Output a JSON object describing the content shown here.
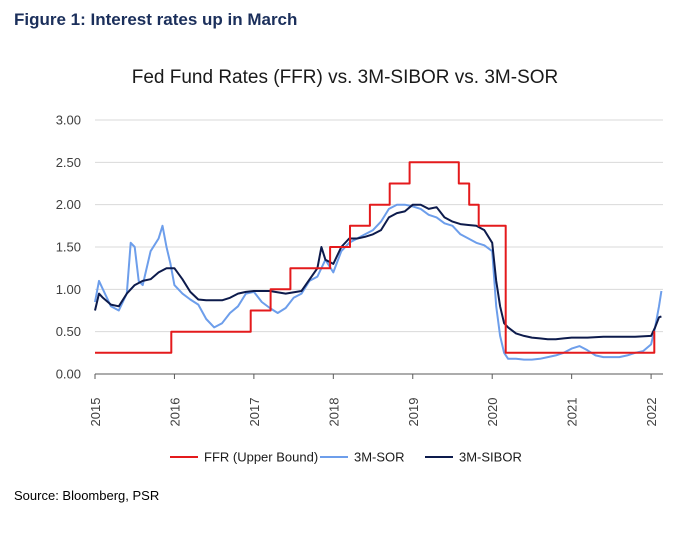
{
  "figure_caption": "Figure 1: Interest rates up in March",
  "source_note": "Source: Bloomberg, PSR",
  "chart_data": {
    "type": "line",
    "title": "Fed Fund Rates (FFR) vs. 3M-SIBOR vs. 3M-SOR",
    "xlabel": "",
    "ylabel": "",
    "xlim": [
      2015.0,
      2022.15
    ],
    "ylim": [
      0,
      3.0
    ],
    "yticks": [
      "0.00",
      "0.50",
      "1.00",
      "1.50",
      "2.00",
      "2.50",
      "3.00"
    ],
    "xticks": [
      "2015",
      "2016",
      "2017",
      "2018",
      "2019",
      "2020",
      "2021",
      "2022"
    ],
    "grid": "horizontal",
    "legend_position": "bottom",
    "series": [
      {
        "name": "FFR (Upper Bound)",
        "color": "#e41a1c",
        "step": true,
        "x": [
          2015.0,
          2015.96,
          2016.96,
          2017.21,
          2017.46,
          2017.96,
          2018.21,
          2018.46,
          2018.71,
          2018.96,
          2019.58,
          2019.71,
          2019.83,
          2020.17,
          2022.0,
          2022.04,
          2022.05
        ],
        "values": [
          0.25,
          0.5,
          0.75,
          1.0,
          1.25,
          1.5,
          1.75,
          2.0,
          2.25,
          2.5,
          2.25,
          2.0,
          1.75,
          0.25,
          0.25,
          0.5,
          0.5
        ]
      },
      {
        "name": "3M-SOR",
        "color": "#6d9eeb",
        "step": false,
        "x": [
          2015.0,
          2015.05,
          2015.1,
          2015.2,
          2015.3,
          2015.4,
          2015.45,
          2015.5,
          2015.55,
          2015.6,
          2015.7,
          2015.8,
          2015.85,
          2015.9,
          2015.95,
          2016.0,
          2016.1,
          2016.2,
          2016.3,
          2016.4,
          2016.5,
          2016.6,
          2016.7,
          2016.8,
          2016.9,
          2017.0,
          2017.1,
          2017.2,
          2017.3,
          2017.4,
          2017.5,
          2017.6,
          2017.7,
          2017.8,
          2017.9,
          2018.0,
          2018.1,
          2018.2,
          2018.3,
          2018.4,
          2018.5,
          2018.6,
          2018.7,
          2018.8,
          2018.9,
          2019.0,
          2019.1,
          2019.2,
          2019.3,
          2019.4,
          2019.5,
          2019.6,
          2019.7,
          2019.8,
          2019.9,
          2020.0,
          2020.05,
          2020.1,
          2020.15,
          2020.2,
          2020.3,
          2020.4,
          2020.5,
          2020.6,
          2020.7,
          2020.8,
          2020.9,
          2021.0,
          2021.1,
          2021.2,
          2021.3,
          2021.4,
          2021.5,
          2021.6,
          2021.7,
          2021.8,
          2021.9,
          2022.0,
          2022.05,
          2022.1,
          2022.13
        ],
        "values": [
          0.85,
          1.1,
          1.0,
          0.8,
          0.75,
          0.95,
          1.55,
          1.5,
          1.1,
          1.05,
          1.45,
          1.6,
          1.75,
          1.5,
          1.3,
          1.05,
          0.95,
          0.88,
          0.82,
          0.65,
          0.55,
          0.6,
          0.72,
          0.8,
          0.95,
          0.97,
          0.85,
          0.78,
          0.72,
          0.78,
          0.9,
          0.95,
          1.1,
          1.15,
          1.35,
          1.2,
          1.45,
          1.55,
          1.6,
          1.65,
          1.7,
          1.8,
          1.95,
          2.0,
          2.0,
          1.98,
          1.95,
          1.88,
          1.85,
          1.78,
          1.75,
          1.65,
          1.6,
          1.55,
          1.52,
          1.45,
          0.8,
          0.45,
          0.25,
          0.18,
          0.18,
          0.17,
          0.17,
          0.18,
          0.2,
          0.22,
          0.25,
          0.3,
          0.33,
          0.28,
          0.22,
          0.2,
          0.2,
          0.2,
          0.22,
          0.25,
          0.27,
          0.35,
          0.55,
          0.8,
          0.98
        ]
      },
      {
        "name": "3M-SIBOR",
        "color": "#0d1b4c",
        "step": false,
        "x": [
          2015.0,
          2015.05,
          2015.1,
          2015.2,
          2015.3,
          2015.4,
          2015.5,
          2015.6,
          2015.7,
          2015.8,
          2015.9,
          2016.0,
          2016.1,
          2016.2,
          2016.3,
          2016.4,
          2016.5,
          2016.6,
          2016.7,
          2016.8,
          2016.9,
          2017.0,
          2017.2,
          2017.4,
          2017.6,
          2017.8,
          2017.85,
          2017.9,
          2018.0,
          2018.1,
          2018.2,
          2018.3,
          2018.4,
          2018.5,
          2018.6,
          2018.7,
          2018.8,
          2018.9,
          2019.0,
          2019.1,
          2019.2,
          2019.3,
          2019.4,
          2019.5,
          2019.6,
          2019.7,
          2019.8,
          2019.9,
          2020.0,
          2020.05,
          2020.1,
          2020.15,
          2020.2,
          2020.3,
          2020.4,
          2020.5,
          2020.6,
          2020.7,
          2020.8,
          2020.9,
          2021.0,
          2021.2,
          2021.4,
          2021.6,
          2021.8,
          2022.0,
          2022.05,
          2022.1,
          2022.13
        ],
        "values": [
          0.75,
          0.95,
          0.9,
          0.82,
          0.8,
          0.95,
          1.05,
          1.1,
          1.12,
          1.2,
          1.25,
          1.25,
          1.12,
          0.97,
          0.88,
          0.87,
          0.87,
          0.87,
          0.9,
          0.95,
          0.97,
          0.98,
          0.98,
          0.95,
          0.98,
          1.25,
          1.5,
          1.35,
          1.3,
          1.5,
          1.6,
          1.6,
          1.62,
          1.65,
          1.7,
          1.85,
          1.9,
          1.92,
          2.0,
          2.0,
          1.95,
          1.97,
          1.85,
          1.8,
          1.77,
          1.76,
          1.75,
          1.7,
          1.55,
          1.1,
          0.8,
          0.6,
          0.55,
          0.48,
          0.45,
          0.43,
          0.42,
          0.41,
          0.41,
          0.42,
          0.43,
          0.43,
          0.44,
          0.44,
          0.44,
          0.45,
          0.55,
          0.67,
          0.68
        ]
      }
    ]
  }
}
